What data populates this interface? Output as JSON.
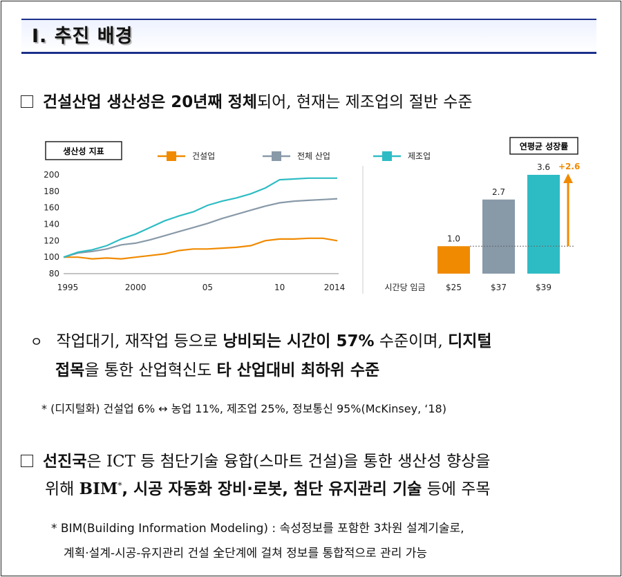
{
  "title": "Ⅰ. 추진 배경",
  "bullet1": {
    "bold": "건설산업 생산성은 20년째 정체",
    "rest": "되어, 현재는 제조업의 절반 수준"
  },
  "chart_data": [
    {
      "type": "line",
      "title": "생산성 지표",
      "x": [
        1995,
        1996,
        1997,
        1998,
        1999,
        2000,
        2001,
        2002,
        2003,
        2004,
        2005,
        2006,
        2007,
        2008,
        2009,
        2010,
        2011,
        2012,
        2013,
        2014
      ],
      "tick_labels": [
        "1995",
        "2000",
        "05",
        "10",
        "2014"
      ],
      "ylim": [
        80,
        200
      ],
      "yticks": [
        "200",
        "180",
        "160",
        "140",
        "120",
        "100",
        "80"
      ],
      "series": [
        {
          "name": "건설업",
          "color": "#f08a00",
          "values": [
            100,
            100,
            98,
            99,
            98,
            100,
            102,
            104,
            108,
            110,
            110,
            111,
            112,
            114,
            120,
            122,
            122,
            123,
            123,
            120
          ]
        },
        {
          "name": "전체 산업",
          "color": "#8899a8",
          "values": [
            100,
            105,
            107,
            110,
            115,
            117,
            121,
            126,
            131,
            136,
            141,
            147,
            152,
            157,
            162,
            166,
            168,
            169,
            170,
            171
          ]
        },
        {
          "name": "제조업",
          "color": "#2ebcc4",
          "values": [
            100,
            106,
            109,
            114,
            122,
            128,
            136,
            144,
            150,
            155,
            163,
            168,
            172,
            177,
            184,
            194,
            195,
            196,
            196,
            196
          ]
        }
      ]
    },
    {
      "type": "bar",
      "title": "연평균 성장률",
      "xlabel": "시간당 임금",
      "categories": [
        "$25",
        "$37",
        "$39"
      ],
      "values": [
        1.0,
        2.7,
        3.6
      ],
      "value_labels": [
        "1.0",
        "2.7",
        "3.6"
      ],
      "colors": [
        "#f08a00",
        "#8899a8",
        "#2ebcc4"
      ],
      "annotation": "+2.6"
    }
  ],
  "sub1": {
    "marker": "ㅇ",
    "p1": "작업대기, 재작업 등으로 ",
    "b1": "낭비되는 시간이 57%",
    "p2": " 수준이며, ",
    "b2": "디지털",
    "b3": "접목",
    "p3": "을 통한 산업혁신도 ",
    "b4": "타 산업대비 최하위 수준"
  },
  "note1": "* (디지털화) 건설업 6% ↔ 농업 11%, 제조업 25%, 정보통신 95%(McKinsey, ‘18)",
  "bullet2": {
    "b1": "선진국",
    "p1": "은 ICT 등 첨단기술 융합(스마트 건설)을 통한 생산성 향상을",
    "p2": "위해 ",
    "b2": "BIM",
    "sup": "*",
    "b3": ", 시공 자동화 장비·로봇, 첨단 유지관리 기술",
    "p3": " 등에 주목"
  },
  "note2": {
    "line1": "* BIM(Building Information Modeling) : 속성정보를 포함한 3차원 설계기술로,",
    "line2": "계획·설계-시공-유지관리 건설 全단계에 걸쳐 정보를 통합적으로 관리 가능"
  }
}
